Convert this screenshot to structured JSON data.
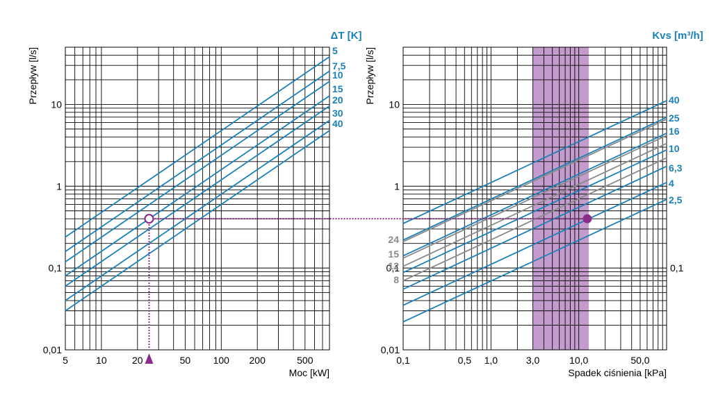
{
  "colors": {
    "blue": "#1b80b8",
    "gray": "#8a8a8a",
    "purple": "#8b2c8a",
    "band": "#c39bcc"
  },
  "chart_data": [
    {
      "id": "left",
      "type": "line",
      "xscale": "log",
      "yscale": "log",
      "xlim": [
        5,
        800
      ],
      "ylim": [
        0.01,
        50
      ],
      "xlabel": "Moc [kW]",
      "ylabel": "Przepływ [l/s]",
      "legend_title": "ΔT [K]",
      "x_ticks": [
        {
          "v": 5,
          "label": "5"
        },
        {
          "v": 10,
          "label": "10"
        },
        {
          "v": 20,
          "label": "20"
        },
        {
          "v": 50,
          "label": "50"
        },
        {
          "v": 100,
          "label": "100"
        },
        {
          "v": 200,
          "label": "200"
        },
        {
          "v": 500,
          "label": "500"
        }
      ],
      "y_ticks": [
        {
          "v": 0.01,
          "label": "0,01"
        },
        {
          "v": 0.1,
          "label": "0,1"
        },
        {
          "v": 1,
          "label": "1"
        },
        {
          "v": 10,
          "label": "10"
        }
      ],
      "series": [
        {
          "name": "5",
          "x": [
            5,
            800
          ],
          "y": [
            0.239,
            38.2
          ]
        },
        {
          "name": "7,5",
          "x": [
            5,
            800
          ],
          "y": [
            0.159,
            25.5
          ]
        },
        {
          "name": "10",
          "x": [
            5,
            800
          ],
          "y": [
            0.119,
            19.1
          ]
        },
        {
          "name": "15",
          "x": [
            5,
            800
          ],
          "y": [
            0.08,
            12.7
          ]
        },
        {
          "name": "20",
          "x": [
            5,
            800
          ],
          "y": [
            0.06,
            9.55
          ]
        },
        {
          "name": "30",
          "x": [
            5,
            800
          ],
          "y": [
            0.04,
            6.37
          ]
        },
        {
          "name": "40",
          "x": [
            5,
            800
          ],
          "y": [
            0.03,
            4.78
          ]
        }
      ],
      "marker": {
        "x": 25,
        "y": 0.4,
        "style": "open-circle"
      },
      "arrow": {
        "x": 25
      }
    },
    {
      "id": "right",
      "type": "line",
      "xscale": "log",
      "yscale": "log",
      "xlim": [
        0.1,
        100
      ],
      "ylim": [
        0.01,
        50
      ],
      "xlabel": "Spadek ciśnienia [kPa]",
      "ylabel": "Przepływ [l/s]",
      "legend_title": "Kvs [m³/h]",
      "x_ticks": [
        {
          "v": 0.1,
          "label": "0,1"
        },
        {
          "v": 0.5,
          "label": "0,5"
        },
        {
          "v": 1,
          "label": "1,0"
        },
        {
          "v": 3,
          "label": "3,0"
        },
        {
          "v": 10,
          "label": "10,0"
        },
        {
          "v": 50,
          "label": "50,0"
        }
      ],
      "y_ticks_left": [
        {
          "v": 0.01,
          "label": "0,01"
        },
        {
          "v": 0.1,
          "label": "0,1"
        },
        {
          "v": 1,
          "label": "1"
        },
        {
          "v": 10,
          "label": "10"
        }
      ],
      "y_ticks_right": [
        {
          "v": 0.1,
          "label": "0,1"
        }
      ],
      "band": {
        "x0": 3,
        "x1": 13
      },
      "series": [
        {
          "name": "40",
          "color": "blue",
          "side": "right",
          "x": [
            0.1,
            100
          ],
          "y": [
            0.35,
            11.1
          ]
        },
        {
          "name": "25",
          "color": "blue",
          "side": "right",
          "x": [
            0.1,
            100
          ],
          "y": [
            0.22,
            6.95
          ]
        },
        {
          "name": "16",
          "color": "blue",
          "side": "right",
          "x": [
            0.1,
            100
          ],
          "y": [
            0.141,
            4.44
          ]
        },
        {
          "name": "10",
          "color": "blue",
          "side": "right",
          "x": [
            0.1,
            100
          ],
          "y": [
            0.088,
            2.78
          ]
        },
        {
          "name": "6,3",
          "color": "blue",
          "side": "right",
          "x": [
            0.1,
            100
          ],
          "y": [
            0.055,
            1.75
          ]
        },
        {
          "name": "4",
          "color": "blue",
          "side": "right",
          "x": [
            0.1,
            100
          ],
          "y": [
            0.035,
            1.11
          ]
        },
        {
          "name": "2,5",
          "color": "blue",
          "side": "right",
          "x": [
            0.1,
            100
          ],
          "y": [
            0.022,
            0.69
          ]
        },
        {
          "name": "24",
          "color": "gray",
          "side": "left",
          "x": [
            0.1,
            100
          ],
          "y": [
            0.21,
            6.6
          ]
        },
        {
          "name": "15",
          "color": "gray",
          "side": "left",
          "x": [
            0.1,
            100
          ],
          "y": [
            0.132,
            4.17
          ]
        },
        {
          "name": "12",
          "color": "gray",
          "side": "left",
          "x": [
            0.1,
            100
          ],
          "y": [
            0.105,
            3.33
          ]
        },
        {
          "name": "8",
          "color": "gray",
          "side": "left",
          "x": [
            0.1,
            100
          ],
          "y": [
            0.07,
            2.22
          ]
        }
      ],
      "marker": {
        "x": 12.5,
        "y": 0.4,
        "style": "filled-circle"
      }
    }
  ]
}
